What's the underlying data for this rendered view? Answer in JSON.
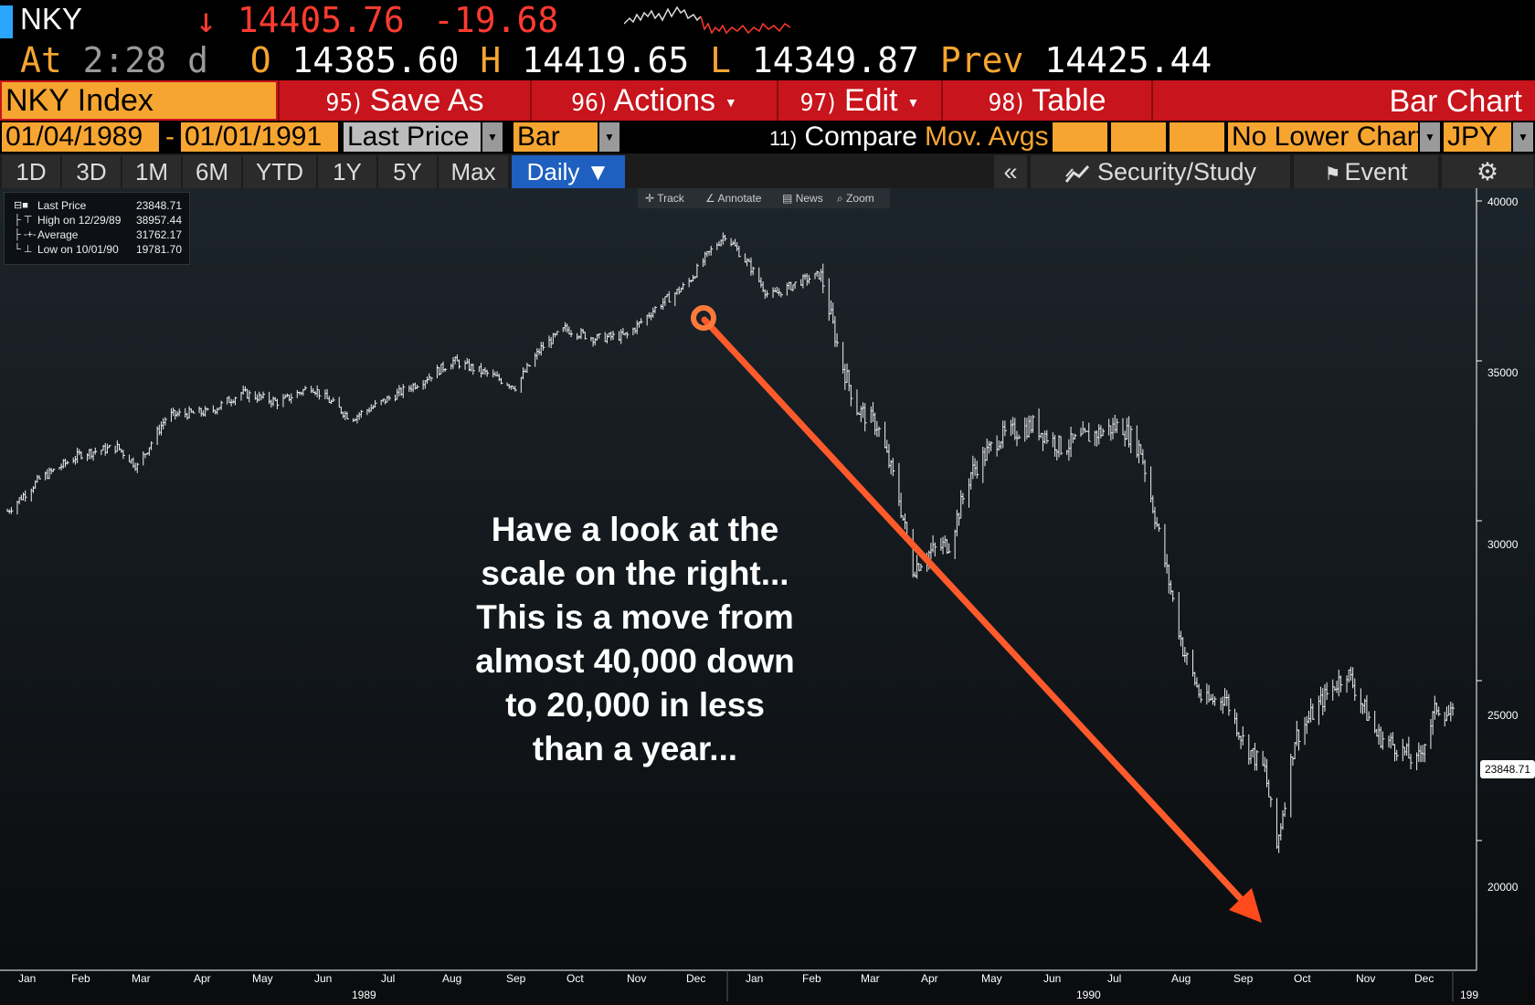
{
  "quote": {
    "ticker": "NKY",
    "last_arrow": "↓",
    "last": "14405.76",
    "change": "-19.68",
    "time_label": "At",
    "time": "2:28",
    "time_suffix": "d",
    "open_label": "O",
    "open": "14385.60",
    "high_label": "H",
    "high": "14419.65",
    "low_label": "L",
    "low": "14349.87",
    "prev_label": "Prev",
    "prev": "14425.44",
    "sparkline_icon": "intraday-sparkline"
  },
  "toolbar": {
    "security": "NKY Index",
    "save_num": "95)",
    "save_label": "Save As",
    "actions_num": "96)",
    "actions_label": "Actions",
    "edit_num": "97)",
    "edit_label": "Edit",
    "table_num": "98)",
    "table_label": "Table",
    "chart_type_title": "Bar Chart"
  },
  "settings": {
    "start_date": "01/04/1989",
    "separator": "-",
    "end_date": "01/01/1991",
    "field": "Last Price",
    "chart_style": "Bar",
    "compare_num": "11)",
    "compare_label": "Compare",
    "mov_avgs_label": "Mov. Avgs",
    "lower_chart": "No Lower Chart",
    "currency": "JPY"
  },
  "periods": {
    "items": [
      "1D",
      "3D",
      "1M",
      "6M",
      "YTD",
      "1Y",
      "5Y",
      "Max"
    ],
    "active": "Daily ▼",
    "collapse": "«",
    "security_study": "Security/Study",
    "event": "Event",
    "settings_icon": "gear-icon"
  },
  "chart_tools": {
    "track": "Track",
    "annotate": "Annotate",
    "news": "News",
    "zoom": "Zoom"
  },
  "legend": {
    "last_price_label": "Last Price",
    "last_price_value": "23848.71",
    "high_label": "High on 12/29/89",
    "high_value": "38957.44",
    "average_label": "Average",
    "average_value": "31762.17",
    "low_label": "Low on 10/01/90",
    "low_value": "19781.70"
  },
  "annotation": {
    "text_lines": [
      "Have a look at the",
      "scale on the right...",
      "This is a move from",
      "almost 40,000 down",
      "to 20,000 in less",
      "than a year..."
    ],
    "arrow_color": "#ff5a2b"
  },
  "chart_data": {
    "type": "bar",
    "title": "",
    "xlabel": "",
    "ylabel": "",
    "ylim": [
      18000,
      40500
    ],
    "y_ticks": [
      "40000",
      "35000",
      "30000",
      "25000",
      "20000"
    ],
    "x_months": [
      "Jan",
      "Feb",
      "Mar",
      "Apr",
      "May",
      "Jun",
      "Jul",
      "Aug",
      "Sep",
      "Oct",
      "Nov",
      "Dec",
      "Jan",
      "Feb",
      "Mar",
      "Apr",
      "May",
      "Jun",
      "Jul",
      "Aug",
      "Sep",
      "Oct",
      "Nov",
      "Dec"
    ],
    "x_years": [
      "1989",
      "1990",
      "199"
    ],
    "last_value_label": "23848.71",
    "series": [
      {
        "name": "Last Price",
        "color": "#ffffff",
        "dates": [
          "1989-01-04",
          "1989-01-20",
          "1989-02-10",
          "1989-02-28",
          "1989-03-10",
          "1989-03-25",
          "1989-04-15",
          "1989-05-01",
          "1989-05-20",
          "1989-06-05",
          "1989-06-25",
          "1989-07-10",
          "1989-07-31",
          "1989-08-15",
          "1989-09-01",
          "1989-09-15",
          "1989-09-28",
          "1989-10-10",
          "1989-10-25",
          "1989-11-10",
          "1989-11-25",
          "1989-12-10",
          "1989-12-20",
          "1989-12-29",
          "1990-01-10",
          "1990-01-20",
          "1990-02-05",
          "1990-02-15",
          "1990-02-25",
          "1990-03-05",
          "1990-03-15",
          "1990-03-25",
          "1990-04-02",
          "1990-04-10",
          "1990-04-20",
          "1990-05-01",
          "1990-05-15",
          "1990-06-01",
          "1990-06-15",
          "1990-07-01",
          "1990-07-15",
          "1990-07-25",
          "1990-08-05",
          "1990-08-15",
          "1990-08-25",
          "1990-09-05",
          "1990-09-15",
          "1990-09-25",
          "1990-10-01",
          "1990-10-10",
          "1990-10-25",
          "1990-11-05",
          "1990-11-20",
          "1990-12-01",
          "1990-12-10",
          "1990-12-20",
          "1990-12-28"
        ],
        "values": [
          30300,
          31300,
          32100,
          32300,
          31700,
          33300,
          33400,
          34000,
          33700,
          34200,
          33200,
          33700,
          34400,
          35000,
          34600,
          34200,
          35400,
          36000,
          35700,
          35800,
          36700,
          37400,
          38300,
          38957,
          38000,
          37000,
          37500,
          37700,
          35000,
          33500,
          33000,
          31000,
          28500,
          29000,
          29300,
          31500,
          32600,
          33000,
          32300,
          32700,
          33000,
          32200,
          29000,
          26000,
          24300,
          24500,
          23000,
          22200,
          19782,
          23200,
          24500,
          25300,
          23300,
          22900,
          22400,
          24200,
          23849
        ]
      }
    ]
  }
}
